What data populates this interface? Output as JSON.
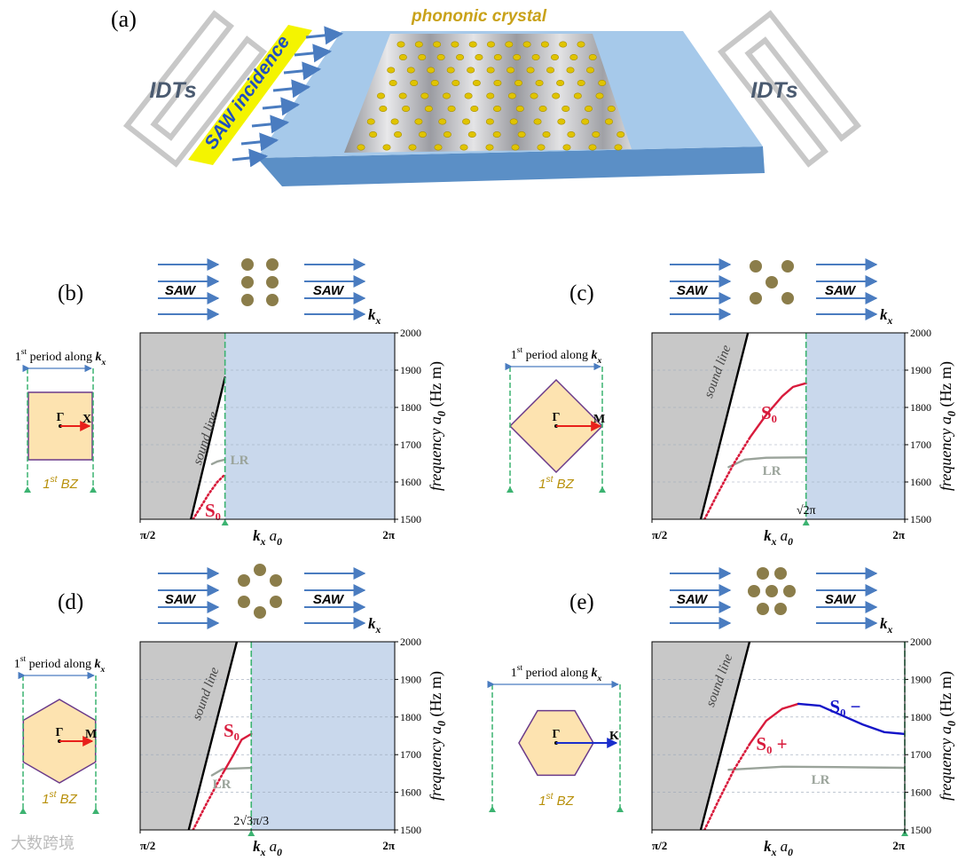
{
  "figure": {
    "label": "(a)",
    "title": "phononic crystal",
    "idt_left": "IDTs",
    "incidence": "SAW incidence",
    "idt_right": "IDTs"
  },
  "watermark": "大数跨境",
  "panels": [
    {
      "label": "(b)",
      "saw_left": "SAW",
      "saw_right": "SAW",
      "k_parts": [
        "k",
        "x"
      ],
      "period_parts": [
        "1",
        "st",
        " period along ",
        "k",
        "x"
      ],
      "gamma": "Γ",
      "point": "X",
      "bz_parts": [
        "1",
        "st",
        " BZ"
      ]
    },
    {
      "label": "(c)",
      "saw_left": "SAW",
      "saw_right": "SAW",
      "k_parts": [
        "k",
        "x"
      ],
      "period_parts": [
        "1",
        "st",
        " period along ",
        "k",
        "x"
      ],
      "gamma": "Γ",
      "point": "M",
      "bz_parts": [
        "1",
        "st",
        " BZ"
      ]
    },
    {
      "label": "(d)",
      "saw_left": "SAW",
      "saw_right": "SAW",
      "k_parts": [
        "k",
        "x"
      ],
      "period_parts": [
        "1",
        "st",
        " period along ",
        "k",
        "x"
      ],
      "gamma": "Γ",
      "point": "M",
      "bz_parts": [
        "1",
        "st",
        " BZ"
      ]
    },
    {
      "label": "(e)",
      "saw_left": "SAW",
      "saw_right": "SAW",
      "k_parts": [
        "k",
        "x"
      ],
      "period_parts": [
        "1",
        "st",
        " period along ",
        "k",
        "x"
      ],
      "gamma": "Γ",
      "point": "K",
      "bz_parts": [
        "1",
        "st",
        " BZ"
      ]
    }
  ],
  "chart_data": [
    {
      "type": "line",
      "xlim": [
        1.5708,
        6.2832
      ],
      "xticks": [
        {
          "value": 1.5708,
          "label": "π/2"
        },
        {
          "value": 6.2832,
          "label": "2π"
        }
      ],
      "ylim": [
        1500,
        2000
      ],
      "yticks": [
        1500,
        1600,
        1700,
        1800,
        1900,
        2000
      ],
      "grid": true,
      "x_label_parts": [
        "k",
        "x",
        " a",
        "0"
      ],
      "y_label_parts": [
        "frequency ",
        "a",
        "0",
        " (Hz m)"
      ],
      "boundary": 3.1416,
      "shade_right": "#c9d8ec",
      "series": [
        {
          "name": "sound line",
          "color": "#000000",
          "style": "solid",
          "shade_left": "#c8c8c8",
          "x": [
            2.51,
            3.14
          ],
          "values": [
            1500,
            1880
          ]
        },
        {
          "name": "LR",
          "color": "#9aa39a",
          "style": "solid",
          "x": [
            2.9,
            3.0,
            3.14
          ],
          "values": [
            1648,
            1655,
            1660
          ]
        },
        {
          "name": "S₀",
          "color": "#d81b3c",
          "style": "dotted",
          "x": [
            2.55,
            2.7,
            2.85,
            3.0,
            3.14
          ],
          "values": [
            1500,
            1535,
            1570,
            1600,
            1620
          ]
        }
      ]
    },
    {
      "type": "line",
      "xlim": [
        1.5708,
        6.2832
      ],
      "xticks": [
        {
          "value": 1.5708,
          "label": "π/2"
        },
        {
          "value": 6.2832,
          "label": "2π"
        }
      ],
      "ylim": [
        1500,
        2000
      ],
      "yticks": [
        1500,
        1600,
        1700,
        1800,
        1900,
        2000
      ],
      "grid": true,
      "x_label_parts": [
        "k",
        "x",
        " a",
        "0"
      ],
      "y_label_parts": [
        "frequency ",
        "a",
        "0",
        " (Hz m)"
      ],
      "boundary": {
        "value": 4.4429,
        "label": "√2π"
      },
      "shade_right": "#c9d8ec",
      "series": [
        {
          "name": "sound line",
          "color": "#000000",
          "style": "solid",
          "shade_left": "#c8c8c8",
          "x": [
            2.48,
            3.36
          ],
          "values": [
            1500,
            2000
          ]
        },
        {
          "name": "LR",
          "color": "#9aa39a",
          "style": "solid",
          "x": [
            3.0,
            3.3,
            3.7,
            4.4429
          ],
          "values": [
            1640,
            1660,
            1665,
            1666
          ]
        },
        {
          "name": "S₀",
          "color": "#d81b3c",
          "style": "dotted-solid",
          "x": [
            2.55,
            2.8,
            3.1,
            3.4,
            3.7,
            4.0,
            4.2,
            4.4429
          ],
          "values": [
            1500,
            1570,
            1650,
            1720,
            1780,
            1830,
            1855,
            1865
          ]
        }
      ]
    },
    {
      "type": "line",
      "xlim": [
        1.5708,
        6.2832
      ],
      "xticks": [
        {
          "value": 1.5708,
          "label": "π/2"
        },
        {
          "value": 6.2832,
          "label": "2π"
        }
      ],
      "ylim": [
        1500,
        2000
      ],
      "yticks": [
        1500,
        1600,
        1700,
        1800,
        1900,
        2000
      ],
      "grid": true,
      "x_label_parts": [
        "k",
        "x",
        " a",
        "0"
      ],
      "y_label_parts": [
        "frequency ",
        "a",
        "0",
        " (Hz m)"
      ],
      "boundary": {
        "value": 3.6276,
        "label": "2√3π/3"
      },
      "shade_right": "#c9d8ec",
      "series": [
        {
          "name": "sound line",
          "color": "#000000",
          "style": "solid",
          "shade_left": "#c8c8c8",
          "x": [
            2.47,
            3.36
          ],
          "values": [
            1500,
            2000
          ]
        },
        {
          "name": "LR",
          "color": "#9aa39a",
          "style": "solid",
          "x": [
            2.9,
            3.1,
            3.6276
          ],
          "values": [
            1645,
            1662,
            1665
          ]
        },
        {
          "name": "S₀",
          "color": "#d81b3c",
          "style": "dotted-solid",
          "x": [
            2.55,
            2.8,
            3.1,
            3.3,
            3.45,
            3.6276
          ],
          "values": [
            1500,
            1570,
            1650,
            1700,
            1740,
            1755
          ]
        }
      ]
    },
    {
      "type": "line",
      "xlim": [
        1.5708,
        6.2832
      ],
      "xticks": [
        {
          "value": 1.5708,
          "label": "π/2"
        },
        {
          "value": 6.2832,
          "label": "2π"
        }
      ],
      "ylim": [
        1500,
        2000
      ],
      "yticks": [
        1500,
        1600,
        1700,
        1800,
        1900,
        2000
      ],
      "grid": true,
      "x_label_parts": [
        "k",
        "x",
        " a",
        "0"
      ],
      "y_label_parts": [
        "frequency ",
        "a",
        "0",
        " (Hz m)"
      ],
      "boundary": 6.2832,
      "shade_right": "#c9d8ec",
      "series": [
        {
          "name": "sound line",
          "color": "#000000",
          "style": "solid",
          "shade_left": "#c8c8c8",
          "x": [
            2.48,
            3.39
          ],
          "values": [
            1500,
            2000
          ]
        },
        {
          "name": "LR",
          "color": "#9aa39a",
          "style": "solid",
          "x": [
            3.0,
            4.0,
            5.0,
            6.28
          ],
          "values": [
            1660,
            1668,
            1667,
            1665
          ]
        },
        {
          "name": "S₀ +",
          "color": "#d81b3c",
          "style": "dotted-solid",
          "x": [
            2.55,
            2.8,
            3.1,
            3.4,
            3.7,
            4.0,
            4.3
          ],
          "values": [
            1500,
            1575,
            1660,
            1730,
            1790,
            1822,
            1835
          ]
        },
        {
          "name": "S₀ −",
          "color": "#1515c8",
          "style": "solid",
          "x": [
            4.3,
            4.7,
            5.1,
            5.5,
            5.9,
            6.28
          ],
          "values": [
            1835,
            1830,
            1805,
            1780,
            1760,
            1755
          ]
        }
      ]
    }
  ]
}
